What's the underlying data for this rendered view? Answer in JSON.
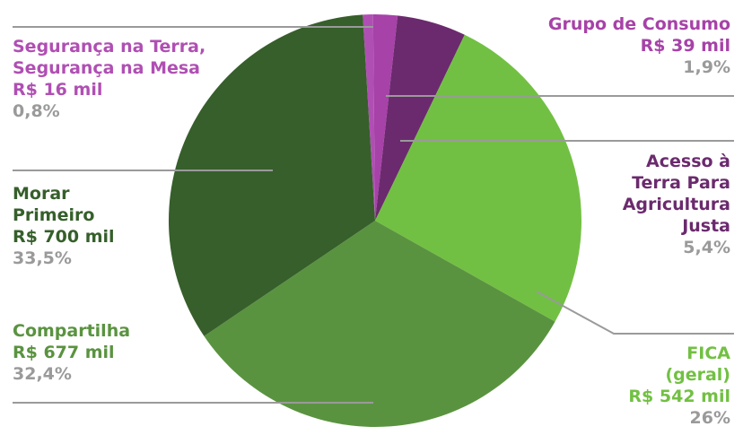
{
  "chart_data": {
    "type": "pie",
    "slices": [
      {
        "name_lines": [
          "Segurança na Terra,",
          "Segurança na Mesa"
        ],
        "value_label": "R$ 16 mil",
        "value": 16,
        "percent": 0.8,
        "percent_label": "0,8%",
        "color": "#b04fb3"
      },
      {
        "name_lines": [
          "Grupo de Consumo"
        ],
        "value_label": "R$ 39 mil",
        "value": 39,
        "percent": 1.9,
        "percent_label": "1,9%",
        "color": "#a742a8"
      },
      {
        "name_lines": [
          "Acesso à",
          "Terra Para",
          "Agricultura",
          "Justa"
        ],
        "value_label": "",
        "value": 113,
        "percent": 5.4,
        "percent_label": "5,4%",
        "color": "#6b2a6e"
      },
      {
        "name_lines": [
          "FICA",
          "(geral)"
        ],
        "value_label": "R$ 542 mil",
        "value": 542,
        "percent": 26,
        "percent_label": "26%",
        "color": "#72c043"
      },
      {
        "name_lines": [
          "Compartilha"
        ],
        "value_label": "R$ 677 mil",
        "value": 677,
        "percent": 32.4,
        "percent_label": "32,4%",
        "color": "#5a9340"
      },
      {
        "name_lines": [
          "Morar",
          "Primeiro"
        ],
        "value_label": "R$ 700 mil",
        "value": 700,
        "percent": 33.5,
        "percent_label": "33,5%",
        "color": "#365f2b"
      }
    ]
  },
  "colors": {
    "label_purple": "#a742a8",
    "label_dark_purple": "#6b2a6e",
    "label_light_green": "#72c043",
    "label_green": "#5a9340",
    "label_dark_green": "#365f2b",
    "percent_gray": "#9a9a9a",
    "leader_gray": "#9a9a9a"
  }
}
